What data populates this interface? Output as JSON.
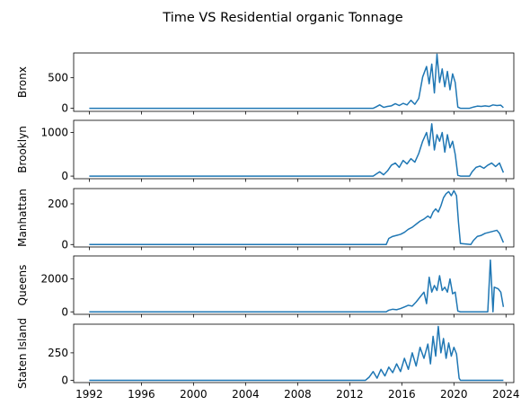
{
  "chart_data": {
    "type": "line",
    "title": "Time VS Residential organic Tonnage",
    "xlabel": "",
    "x_ticks": [
      "1992",
      "1996",
      "2000",
      "2004",
      "2008",
      "2012",
      "2016",
      "2020",
      "2024"
    ],
    "xlim": [
      1990.8,
      2024.6
    ],
    "line_color": "#1f77b4",
    "shared_x": true,
    "grid": false,
    "legend": "none",
    "panels": [
      {
        "ylabel": "Bronx",
        "ylim": [
          -50,
          900
        ],
        "yticks": [
          0,
          500
        ],
        "points": [
          [
            1992.0,
            0
          ],
          [
            2013.8,
            0
          ],
          [
            2014.0,
            20
          ],
          [
            2014.3,
            55
          ],
          [
            2014.6,
            15
          ],
          [
            2014.9,
            30
          ],
          [
            2015.2,
            40
          ],
          [
            2015.5,
            75
          ],
          [
            2015.8,
            45
          ],
          [
            2016.1,
            80
          ],
          [
            2016.4,
            55
          ],
          [
            2016.7,
            130
          ],
          [
            2017.0,
            65
          ],
          [
            2017.3,
            160
          ],
          [
            2017.6,
            510
          ],
          [
            2017.9,
            680
          ],
          [
            2018.1,
            400
          ],
          [
            2018.3,
            720
          ],
          [
            2018.5,
            250
          ],
          [
            2018.7,
            880
          ],
          [
            2018.9,
            420
          ],
          [
            2019.1,
            640
          ],
          [
            2019.3,
            350
          ],
          [
            2019.5,
            600
          ],
          [
            2019.7,
            300
          ],
          [
            2019.9,
            560
          ],
          [
            2020.1,
            420
          ],
          [
            2020.3,
            20
          ],
          [
            2020.5,
            0
          ],
          [
            2021.2,
            0
          ],
          [
            2021.5,
            20
          ],
          [
            2021.8,
            35
          ],
          [
            2022.1,
            30
          ],
          [
            2022.4,
            40
          ],
          [
            2022.7,
            30
          ],
          [
            2023.0,
            55
          ],
          [
            2023.3,
            45
          ],
          [
            2023.6,
            50
          ],
          [
            2023.8,
            10
          ]
        ]
      },
      {
        "ylabel": "Brooklyn",
        "ylim": [
          -60,
          1280
        ],
        "yticks": [
          0,
          1000
        ],
        "points": [
          [
            1992.0,
            0
          ],
          [
            2013.8,
            0
          ],
          [
            2014.0,
            40
          ],
          [
            2014.3,
            100
          ],
          [
            2014.6,
            30
          ],
          [
            2014.9,
            120
          ],
          [
            2015.2,
            250
          ],
          [
            2015.5,
            300
          ],
          [
            2015.8,
            200
          ],
          [
            2016.1,
            360
          ],
          [
            2016.4,
            280
          ],
          [
            2016.7,
            400
          ],
          [
            2017.0,
            320
          ],
          [
            2017.3,
            520
          ],
          [
            2017.6,
            800
          ],
          [
            2017.9,
            1000
          ],
          [
            2018.1,
            700
          ],
          [
            2018.3,
            1200
          ],
          [
            2018.5,
            600
          ],
          [
            2018.7,
            950
          ],
          [
            2018.9,
            800
          ],
          [
            2019.1,
            1000
          ],
          [
            2019.3,
            550
          ],
          [
            2019.5,
            950
          ],
          [
            2019.7,
            650
          ],
          [
            2019.9,
            800
          ],
          [
            2020.1,
            500
          ],
          [
            2020.3,
            20
          ],
          [
            2020.5,
            0
          ],
          [
            2021.2,
            0
          ],
          [
            2021.4,
            100
          ],
          [
            2021.7,
            200
          ],
          [
            2022.0,
            230
          ],
          [
            2022.3,
            180
          ],
          [
            2022.6,
            250
          ],
          [
            2022.9,
            300
          ],
          [
            2023.2,
            220
          ],
          [
            2023.5,
            300
          ],
          [
            2023.8,
            80
          ]
        ]
      },
      {
        "ylabel": "Manhattan",
        "ylim": [
          -12,
          275
        ],
        "yticks": [
          0,
          200
        ],
        "points": [
          [
            1992.0,
            0
          ],
          [
            2014.8,
            0
          ],
          [
            2015.0,
            30
          ],
          [
            2015.3,
            40
          ],
          [
            2015.6,
            45
          ],
          [
            2015.9,
            50
          ],
          [
            2016.2,
            60
          ],
          [
            2016.5,
            75
          ],
          [
            2016.8,
            85
          ],
          [
            2017.1,
            100
          ],
          [
            2017.4,
            115
          ],
          [
            2017.7,
            125
          ],
          [
            2018.0,
            140
          ],
          [
            2018.2,
            130
          ],
          [
            2018.4,
            160
          ],
          [
            2018.6,
            175
          ],
          [
            2018.8,
            160
          ],
          [
            2019.0,
            190
          ],
          [
            2019.2,
            230
          ],
          [
            2019.4,
            250
          ],
          [
            2019.6,
            260
          ],
          [
            2019.8,
            240
          ],
          [
            2020.0,
            265
          ],
          [
            2020.2,
            240
          ],
          [
            2020.35,
            110
          ],
          [
            2020.5,
            5
          ],
          [
            2021.3,
            0
          ],
          [
            2021.5,
            20
          ],
          [
            2021.8,
            40
          ],
          [
            2022.1,
            45
          ],
          [
            2022.4,
            55
          ],
          [
            2022.7,
            60
          ],
          [
            2023.0,
            65
          ],
          [
            2023.3,
            70
          ],
          [
            2023.5,
            55
          ],
          [
            2023.8,
            10
          ]
        ]
      },
      {
        "ylabel": "Queens",
        "ylim": [
          -150,
          3400
        ],
        "yticks": [
          0,
          2000
        ],
        "points": [
          [
            1992.0,
            0
          ],
          [
            2014.8,
            0
          ],
          [
            2015.0,
            100
          ],
          [
            2015.3,
            160
          ],
          [
            2015.6,
            130
          ],
          [
            2015.9,
            200
          ],
          [
            2016.2,
            300
          ],
          [
            2016.5,
            400
          ],
          [
            2016.8,
            350
          ],
          [
            2017.1,
            600
          ],
          [
            2017.4,
            900
          ],
          [
            2017.7,
            1200
          ],
          [
            2017.9,
            500
          ],
          [
            2018.1,
            2100
          ],
          [
            2018.3,
            1200
          ],
          [
            2018.5,
            1600
          ],
          [
            2018.7,
            1300
          ],
          [
            2018.9,
            2200
          ],
          [
            2019.1,
            1300
          ],
          [
            2019.3,
            1500
          ],
          [
            2019.5,
            1200
          ],
          [
            2019.7,
            2000
          ],
          [
            2019.9,
            1100
          ],
          [
            2020.1,
            1200
          ],
          [
            2020.3,
            50
          ],
          [
            2020.5,
            0
          ],
          [
            2022.6,
            0
          ],
          [
            2022.8,
            3150
          ],
          [
            2023.0,
            0
          ],
          [
            2023.1,
            1500
          ],
          [
            2023.4,
            1400
          ],
          [
            2023.6,
            1200
          ],
          [
            2023.8,
            300
          ]
        ]
      },
      {
        "ylabel": "Staten Island",
        "ylim": [
          -20,
          510
        ],
        "yticks": [
          0,
          250
        ],
        "points": [
          [
            1992.0,
            0
          ],
          [
            2013.2,
            0
          ],
          [
            2013.5,
            30
          ],
          [
            2013.8,
            80
          ],
          [
            2014.1,
            20
          ],
          [
            2014.4,
            100
          ],
          [
            2014.7,
            40
          ],
          [
            2015.0,
            120
          ],
          [
            2015.3,
            70
          ],
          [
            2015.6,
            150
          ],
          [
            2015.9,
            80
          ],
          [
            2016.2,
            200
          ],
          [
            2016.5,
            100
          ],
          [
            2016.8,
            250
          ],
          [
            2017.1,
            130
          ],
          [
            2017.4,
            300
          ],
          [
            2017.7,
            200
          ],
          [
            2018.0,
            330
          ],
          [
            2018.2,
            150
          ],
          [
            2018.4,
            400
          ],
          [
            2018.6,
            220
          ],
          [
            2018.8,
            490
          ],
          [
            2019.0,
            250
          ],
          [
            2019.2,
            380
          ],
          [
            2019.4,
            200
          ],
          [
            2019.6,
            340
          ],
          [
            2019.8,
            220
          ],
          [
            2020.0,
            300
          ],
          [
            2020.2,
            240
          ],
          [
            2020.4,
            20
          ],
          [
            2020.5,
            0
          ],
          [
            2023.8,
            0
          ]
        ]
      }
    ]
  }
}
